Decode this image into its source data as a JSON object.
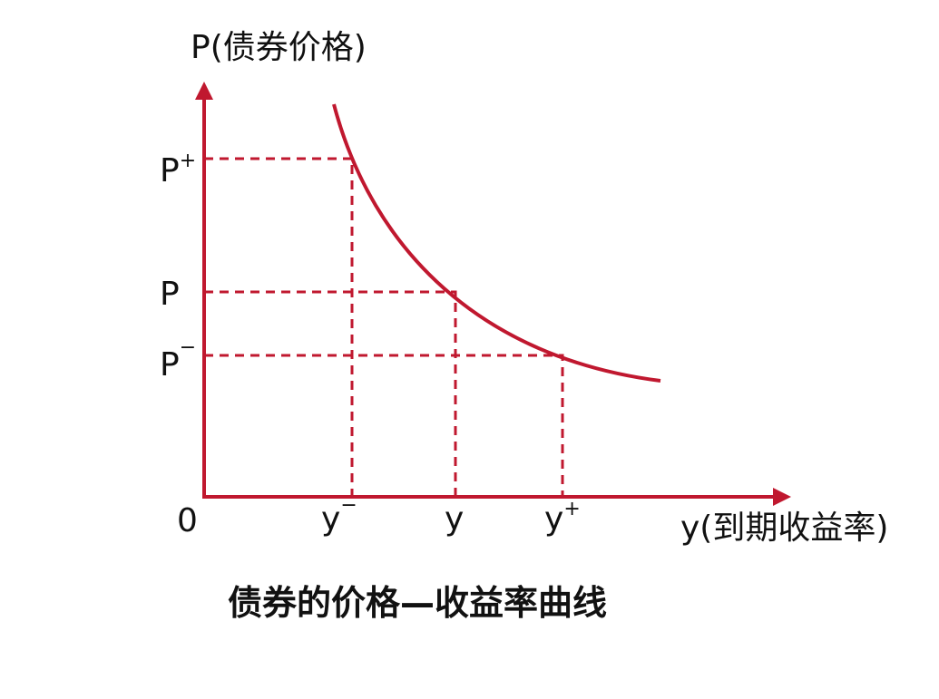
{
  "y_axis_label": "P(债券价格)",
  "x_axis_label": "y(到期收益率)",
  "origin": "0",
  "y_labels": [
    {
      "base": "P",
      "sup": "+"
    },
    {
      "base": "P"
    },
    {
      "base": "P",
      "sup": "−"
    }
  ],
  "x_labels": [
    {
      "base": "y",
      "sup": "−"
    },
    {
      "base": "y"
    },
    {
      "base": "y",
      "sup": "+"
    }
  ],
  "caption": "债券的价格—收益率曲线"
}
